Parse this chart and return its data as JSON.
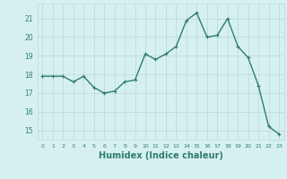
{
  "x": [
    0,
    1,
    2,
    3,
    4,
    5,
    6,
    7,
    8,
    9,
    10,
    11,
    12,
    13,
    14,
    15,
    16,
    17,
    18,
    19,
    20,
    21,
    22,
    23
  ],
  "y": [
    17.9,
    17.9,
    17.9,
    17.6,
    17.9,
    17.3,
    17.0,
    17.1,
    17.6,
    17.7,
    19.1,
    18.8,
    19.1,
    19.5,
    20.9,
    21.3,
    20.0,
    20.1,
    21.0,
    19.5,
    18.9,
    17.4,
    15.2,
    14.8
  ],
  "line_color": "#2e7d6e",
  "marker": "+",
  "marker_size": 3,
  "linewidth": 1.0,
  "xlabel": "Humidex (Indice chaleur)",
  "xlabel_fontsize": 7,
  "bg_color": "#d6f0f0",
  "grid_color": "#b8d8d8",
  "label_color": "#2e7d6e",
  "xlim": [
    -0.5,
    23.5
  ],
  "ylim": [
    14.5,
    21.8
  ],
  "yticks": [
    15,
    16,
    17,
    18,
    19,
    20,
    21
  ],
  "xticks": [
    0,
    1,
    2,
    3,
    4,
    5,
    6,
    7,
    8,
    9,
    10,
    11,
    12,
    13,
    14,
    15,
    16,
    17,
    18,
    19,
    20,
    21,
    22,
    23
  ]
}
